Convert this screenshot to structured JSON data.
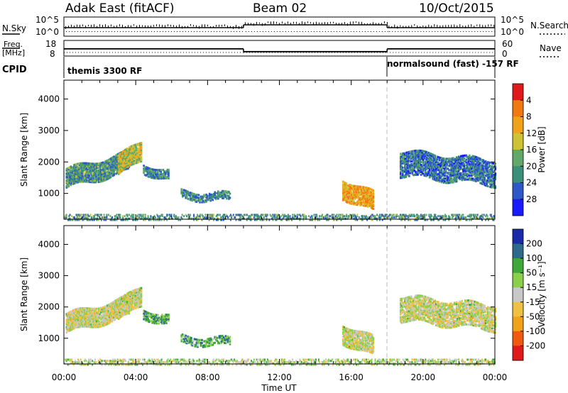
{
  "header": {
    "station": "Adak East (fitACF)",
    "beam": "Beam 02",
    "date": "10/Oct/2015"
  },
  "status_panels": {
    "nsky_label": "N.Sky",
    "nsearch_label": "N.Search",
    "freq_label_1": "Freq.",
    "freq_label_2": "[MHz]",
    "nave_label": "Nave",
    "cpid_label": "CPID",
    "nsky_ticks": [
      "10^5",
      "10^0"
    ],
    "nsearch_ticks": [
      "10^5",
      "10^0"
    ],
    "freq_ticks": [
      "18",
      "8"
    ],
    "nave_ticks": [
      "60",
      "0"
    ],
    "freq_mhz_segments": [
      {
        "start_h": 0,
        "end_h": 10,
        "value": 12.6
      },
      {
        "start_h": 10,
        "end_h": 18,
        "value": 10.6
      },
      {
        "start_h": 18,
        "end_h": 24,
        "value": 12.6
      }
    ],
    "cpid_segments": [
      {
        "start_h": 0,
        "label": "themis 3300 RF"
      },
      {
        "start_h": 18,
        "label": "normalsound (fast) -157 RF"
      }
    ]
  },
  "chart_data": [
    {
      "type": "heatmap",
      "name": "power",
      "ylabel": "Slant Range [km]",
      "xlabel": "",
      "xlim_hours": [
        0,
        24
      ],
      "ylim_km": [
        180,
        4600
      ],
      "yticks": [
        "1000",
        "2000",
        "3000",
        "4000"
      ],
      "colorbar": {
        "label": "Power [dB]",
        "range": [
          0,
          32
        ],
        "ticks": [
          "4",
          "8",
          "12",
          "16",
          "20",
          "24",
          "28"
        ],
        "colors": [
          "#1a1aff",
          "#2d58c8",
          "#3c8f7a",
          "#62a86a",
          "#cfc234",
          "#f0a21a",
          "#f07a10",
          "#e01a1a"
        ]
      },
      "echo_regions": [
        {
          "t0": 0.1,
          "t1": 3.6,
          "r0": 1500,
          "r1": 2050,
          "rd": 300,
          "level": 0.35,
          "density": 0.85
        },
        {
          "t0": 3.0,
          "t1": 4.3,
          "r0": 1900,
          "r1": 2400,
          "rd": 300,
          "level": 0.55,
          "density": 0.85
        },
        {
          "t0": 4.4,
          "t1": 5.8,
          "r0": 1850,
          "r1": 1600,
          "rd": 150,
          "level": 0.3,
          "density": 0.7
        },
        {
          "t0": 6.5,
          "t1": 9.2,
          "r0": 1000,
          "r1": 900,
          "rd": 120,
          "level": 0.3,
          "density": 0.6
        },
        {
          "t0": 15.5,
          "t1": 17.2,
          "r0": 1200,
          "r1": 750,
          "rd": 300,
          "level": 0.7,
          "density": 0.8
        },
        {
          "t0": 18.7,
          "t1": 24.0,
          "r0": 2000,
          "r1": 1700,
          "rd": 400,
          "level": 0.25,
          "density": 0.7
        }
      ]
    },
    {
      "type": "heatmap",
      "name": "velocity",
      "ylabel": "Slant Range [km]",
      "xlabel": "Time UT",
      "xlim_hours": [
        0,
        24
      ],
      "ylim_km": [
        180,
        4600
      ],
      "yticks": [
        "1000",
        "2000",
        "3000",
        "4000"
      ],
      "xticks": [
        "00:00",
        "04:00",
        "08:00",
        "12:00",
        "16:00",
        "20:00",
        "00:00"
      ],
      "colorbar": {
        "label": "Velocity [m s⁻¹]",
        "range": [
          -250,
          250
        ],
        "ticks": [
          "200",
          "100",
          "50",
          "15",
          "-15",
          "-50",
          "-100",
          "-200"
        ],
        "colors": [
          "#e01a1a",
          "#f05a10",
          "#f0a21a",
          "#f0c040",
          "#c8c8c8",
          "#8ad04a",
          "#3ea83a",
          "#2d6a8c",
          "#1a2aa8"
        ]
      },
      "echo_regions": [
        {
          "t0": 0.1,
          "t1": 3.6,
          "r0": 1500,
          "r1": 2050,
          "rd": 300,
          "level": 0.5,
          "density": 0.85
        },
        {
          "t0": 3.0,
          "t1": 4.3,
          "r0": 1900,
          "r1": 2400,
          "rd": 300,
          "level": 0.5,
          "density": 0.85
        },
        {
          "t0": 4.4,
          "t1": 5.8,
          "r0": 1850,
          "r1": 1600,
          "rd": 150,
          "level": 0.72,
          "density": 0.7
        },
        {
          "t0": 6.5,
          "t1": 9.2,
          "r0": 1000,
          "r1": 900,
          "rd": 120,
          "level": 0.7,
          "density": 0.5
        },
        {
          "t0": 15.5,
          "t1": 17.2,
          "r0": 1200,
          "r1": 750,
          "rd": 300,
          "level": 0.5,
          "density": 0.8
        },
        {
          "t0": 18.7,
          "t1": 24.0,
          "r0": 2000,
          "r1": 1700,
          "rd": 400,
          "level": 0.5,
          "density": 0.7
        }
      ]
    }
  ]
}
